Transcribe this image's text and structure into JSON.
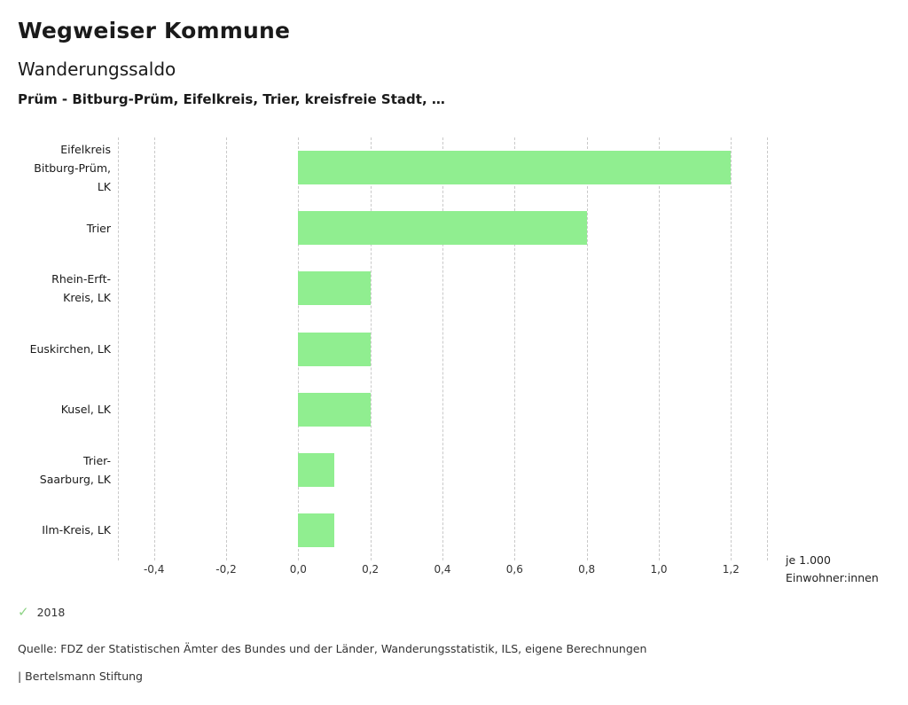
{
  "header": {
    "title": "Wegweiser Kommune",
    "subtitle": "Wanderungssaldo",
    "region_line": "Prüm - Bitburg-Prüm, Eifelkreis, Trier, kreisfreie Stadt, …"
  },
  "chart_data": {
    "type": "bar",
    "orientation": "horizontal",
    "title": "Wanderungssaldo",
    "categories": [
      "Eifelkreis Bitburg-Prüm, LK",
      "Trier",
      "Rhein-Erft-Kreis, LK",
      "Euskirchen, LK",
      "Kusel, LK",
      "Trier-Saarburg, LK",
      "Ilm-Kreis, LK"
    ],
    "category_label_lines": [
      [
        "Eifelkreis",
        "Bitburg-Prüm,",
        "LK"
      ],
      [
        "Trier"
      ],
      [
        "Rhein-Erft-",
        "Kreis, LK"
      ],
      [
        "Euskirchen, LK"
      ],
      [
        "Kusel, LK"
      ],
      [
        "Trier-",
        "Saarburg, LK"
      ],
      [
        "Ilm-Kreis, LK"
      ]
    ],
    "series": [
      {
        "name": "2018",
        "values": [
          1.2,
          0.8,
          0.2,
          0.2,
          0.2,
          0.1,
          0.1
        ]
      }
    ],
    "xlim": [
      -0.5,
      1.3
    ],
    "ticks": [
      -0.4,
      -0.2,
      0,
      0.2,
      0.4,
      0.6,
      0.8,
      1.0,
      1.2
    ],
    "tick_labels": [
      "-0,4",
      "-0,2",
      "0,0",
      "0,2",
      "0,4",
      "0,6",
      "0,8",
      "1,0",
      "1,2"
    ],
    "unit_label_lines": [
      "je 1.000",
      "Einwohner:innen"
    ],
    "xlabel": "je 1.000 Einwohner:innen",
    "ylabel": "",
    "bar_color": "#90ee90",
    "grid": "dashed-vertical",
    "legend_position": "bottom-left"
  },
  "legend": {
    "check_icon": "✓",
    "check_color": "#8fd487",
    "year": "2018"
  },
  "footer": {
    "source": "Quelle: FDZ der Statistischen Ämter des Bundes und der Länder, Wanderungsstatistik, ILS, eigene Berechnungen",
    "branding": "| Bertelsmann Stiftung"
  }
}
